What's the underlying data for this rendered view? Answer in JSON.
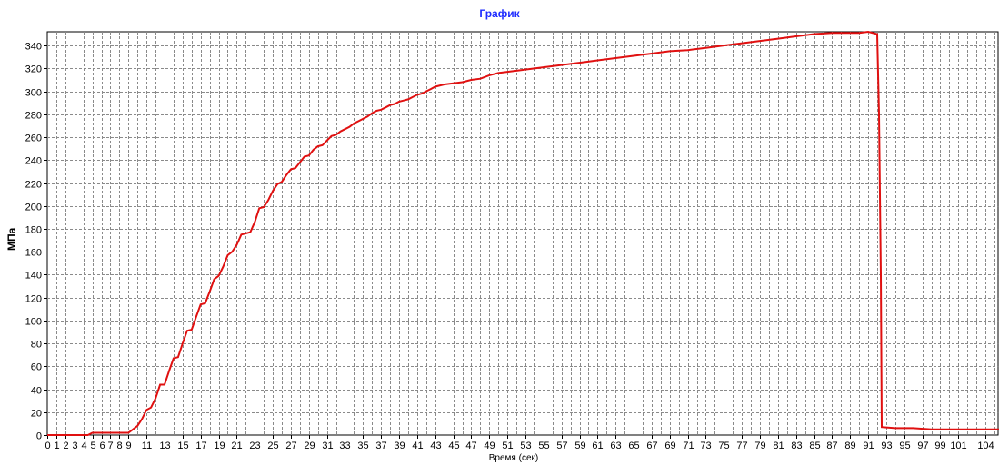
{
  "chart_data": {
    "type": "line",
    "title": "График",
    "xlabel": "Время (сек)",
    "ylabel": "МПа",
    "xlim": [
      0,
      105.5
    ],
    "ylim": [
      0,
      352
    ],
    "grid": true,
    "legend": "none",
    "x_ticks": [
      "0",
      "1",
      "2",
      "3",
      "4",
      "5",
      "6",
      "7",
      "8",
      "9",
      "11",
      "13",
      "15",
      "17",
      "19",
      "21",
      "23",
      "25",
      "27",
      "29",
      "31",
      "33",
      "35",
      "37",
      "39",
      "41",
      "43",
      "45",
      "47",
      "49",
      "51",
      "53",
      "55",
      "57",
      "59",
      "61",
      "63",
      "65",
      "67",
      "69",
      "71",
      "73",
      "75",
      "77",
      "79",
      "81",
      "83",
      "85",
      "87",
      "89",
      "91",
      "93",
      "95",
      "97",
      "99",
      "101",
      "104"
    ],
    "y_ticks": [
      "0",
      "20",
      "40",
      "60",
      "80",
      "100",
      "120",
      "140",
      "160",
      "180",
      "200",
      "220",
      "240",
      "260",
      "280",
      "300",
      "320",
      "340"
    ],
    "series": [
      {
        "color": "#e01010",
        "x": [
          0,
          4.5,
          5,
          9,
          9.5,
          10,
          10.5,
          11,
          11.5,
          12,
          12.5,
          13,
          13.5,
          14,
          14.5,
          15,
          15.5,
          16,
          16.5,
          17,
          17.5,
          18,
          18.5,
          19,
          19.5,
          20,
          20.5,
          21,
          21.5,
          22,
          22.5,
          23,
          23.5,
          24,
          24.5,
          25,
          25.5,
          26,
          26.5,
          27,
          27.5,
          28,
          28.5,
          29,
          29.5,
          30,
          30.5,
          31,
          31.5,
          32,
          32.5,
          33,
          33.5,
          34,
          34.5,
          35,
          35.5,
          36,
          36.5,
          37,
          37.5,
          38,
          38.5,
          39,
          39.5,
          40,
          40.5,
          41,
          41.5,
          42,
          42.5,
          43,
          44,
          45,
          46,
          47,
          48,
          49,
          50,
          51,
          52,
          53,
          55,
          57,
          59,
          61,
          63,
          65,
          67,
          69,
          71,
          73,
          75,
          77,
          79,
          81,
          83,
          85,
          87,
          89,
          90,
          91,
          92,
          92.2,
          92.4,
          92.5,
          94,
          96,
          98,
          100,
          102,
          104,
          105.5
        ],
        "y": [
          0,
          0,
          2,
          2,
          5,
          8,
          14,
          22,
          24,
          32,
          44,
          44,
          56,
          67,
          68,
          80,
          91,
          92,
          103,
          114,
          115,
          125,
          136,
          139,
          147,
          157,
          160,
          166,
          175,
          176,
          177,
          186,
          198,
          199,
          205,
          213,
          219,
          221,
          227,
          232,
          233,
          238,
          243,
          244,
          249,
          252,
          253,
          257,
          261,
          262,
          265,
          267,
          269,
          272,
          274,
          276,
          278,
          281,
          283,
          284,
          286,
          288,
          289,
          291,
          292,
          293,
          295,
          297,
          298,
          300,
          302,
          304,
          306,
          307,
          308,
          310,
          311,
          314,
          316,
          317,
          318,
          319,
          321,
          323,
          325,
          327,
          329,
          331,
          333,
          335,
          336,
          338,
          340,
          342,
          344,
          346,
          348,
          350,
          351,
          351,
          351,
          352,
          350,
          280,
          140,
          7,
          6,
          6,
          5,
          5,
          5,
          5,
          5
        ]
      }
    ]
  }
}
